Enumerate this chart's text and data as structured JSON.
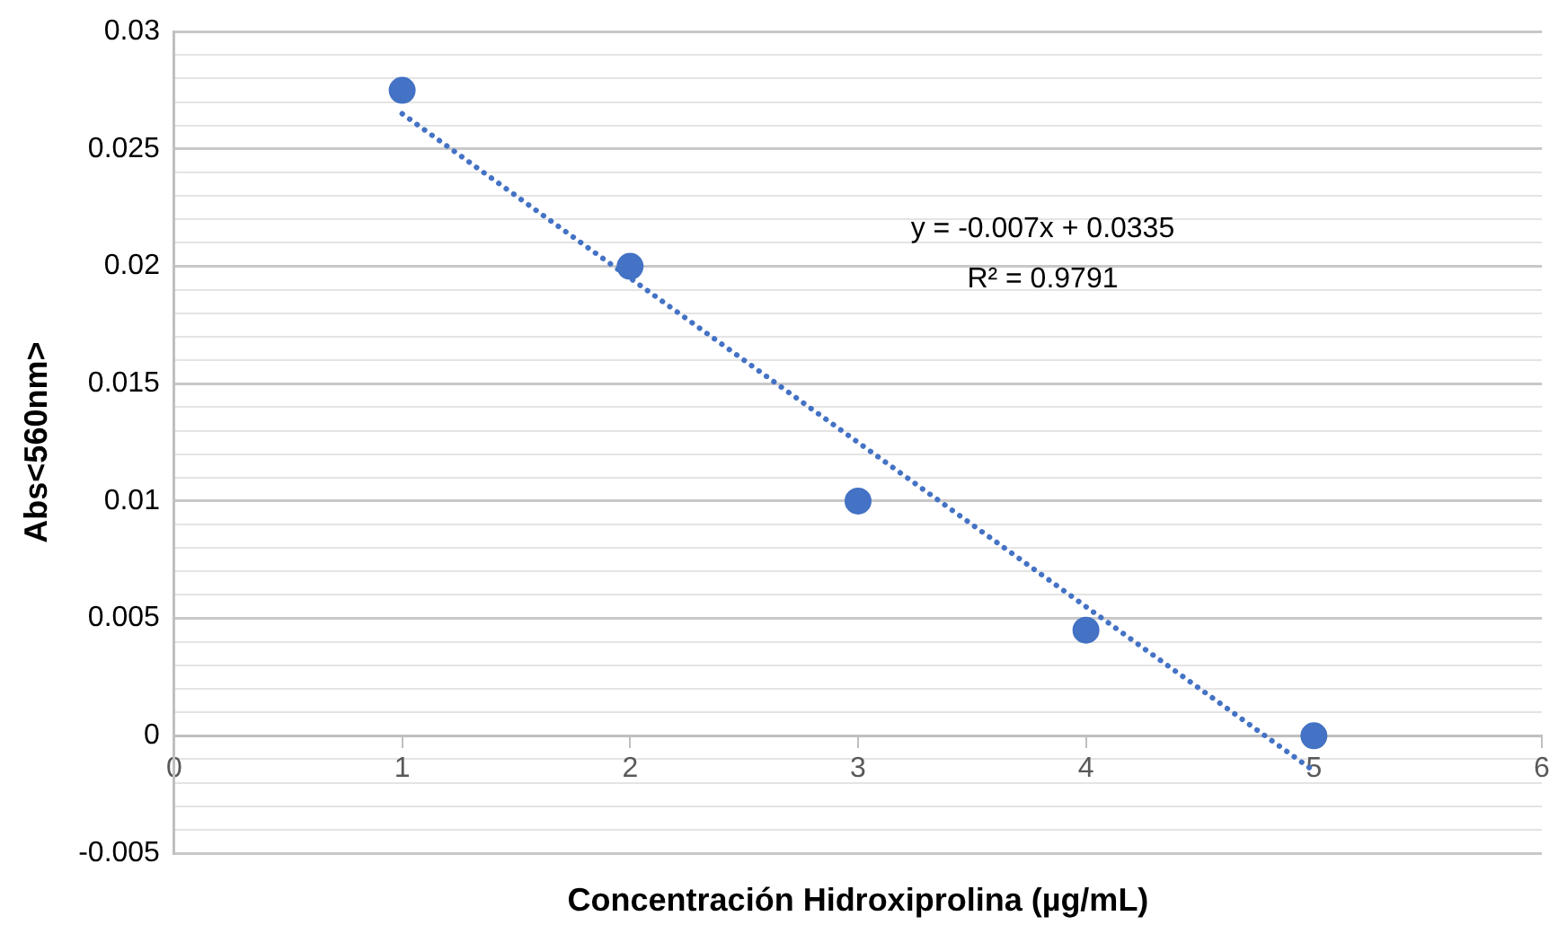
{
  "chart_data": {
    "type": "scatter",
    "xlabel": "Concentración Hidroxiprolina (µg/mL)",
    "ylabel": "Abs<560nm>",
    "annotations": [
      "y = -0.007x + 0.0335",
      "R² = 0.9791"
    ],
    "xlim": [
      0,
      6
    ],
    "xticks": [
      0,
      1,
      2,
      3,
      4,
      5,
      6
    ],
    "ylim": [
      -0.005,
      0.03
    ],
    "yticks": [
      -0.005,
      {
        "value": -0.004,
        "label": null
      },
      {
        "value": -0.003,
        "label": null
      },
      {
        "value": -0.002,
        "label": null
      },
      {
        "value": -0.001,
        "label": null
      },
      0,
      {
        "value": 0.001,
        "label": null
      },
      {
        "value": 0.002,
        "label": null
      },
      {
        "value": 0.003,
        "label": null
      },
      {
        "value": 0.004,
        "label": null
      },
      0.005,
      {
        "value": 0.006,
        "label": null
      },
      {
        "value": 0.007,
        "label": null
      },
      {
        "value": 0.008,
        "label": null
      },
      {
        "value": 0.009,
        "label": null
      },
      0.01,
      {
        "value": 0.011,
        "label": null
      },
      {
        "value": 0.012,
        "label": null
      },
      {
        "value": 0.013,
        "label": null
      },
      {
        "value": 0.014,
        "label": null
      },
      0.015,
      {
        "value": 0.016,
        "label": null
      },
      {
        "value": 0.017,
        "label": null
      },
      {
        "value": 0.018,
        "label": null
      },
      {
        "value": 0.019,
        "label": null
      },
      0.02,
      {
        "value": 0.021,
        "label": null
      },
      {
        "value": 0.022,
        "label": null
      },
      {
        "value": 0.023,
        "label": null
      },
      {
        "value": 0.024,
        "label": null
      },
      0.025,
      {
        "value": 0.026,
        "label": null
      },
      {
        "value": 0.027,
        "label": null
      },
      {
        "value": 0.028,
        "label": null
      },
      {
        "value": 0.029,
        "label": null
      },
      0.03
    ],
    "grid": "y",
    "legend": false,
    "marker": "circle",
    "series": [
      {
        "type": "scatter",
        "color": "#4472c4",
        "x": [
          1,
          2,
          3,
          4,
          5
        ],
        "values": [
          0.0275,
          0.02,
          0.01,
          0.0045,
          0
        ]
      },
      {
        "type": "line",
        "color": "#4472c4",
        "x": [
          1,
          5
        ],
        "values": [
          0.0265,
          -0.0015
        ],
        "line_style": "dotted",
        "marker": "none"
      }
    ]
  }
}
